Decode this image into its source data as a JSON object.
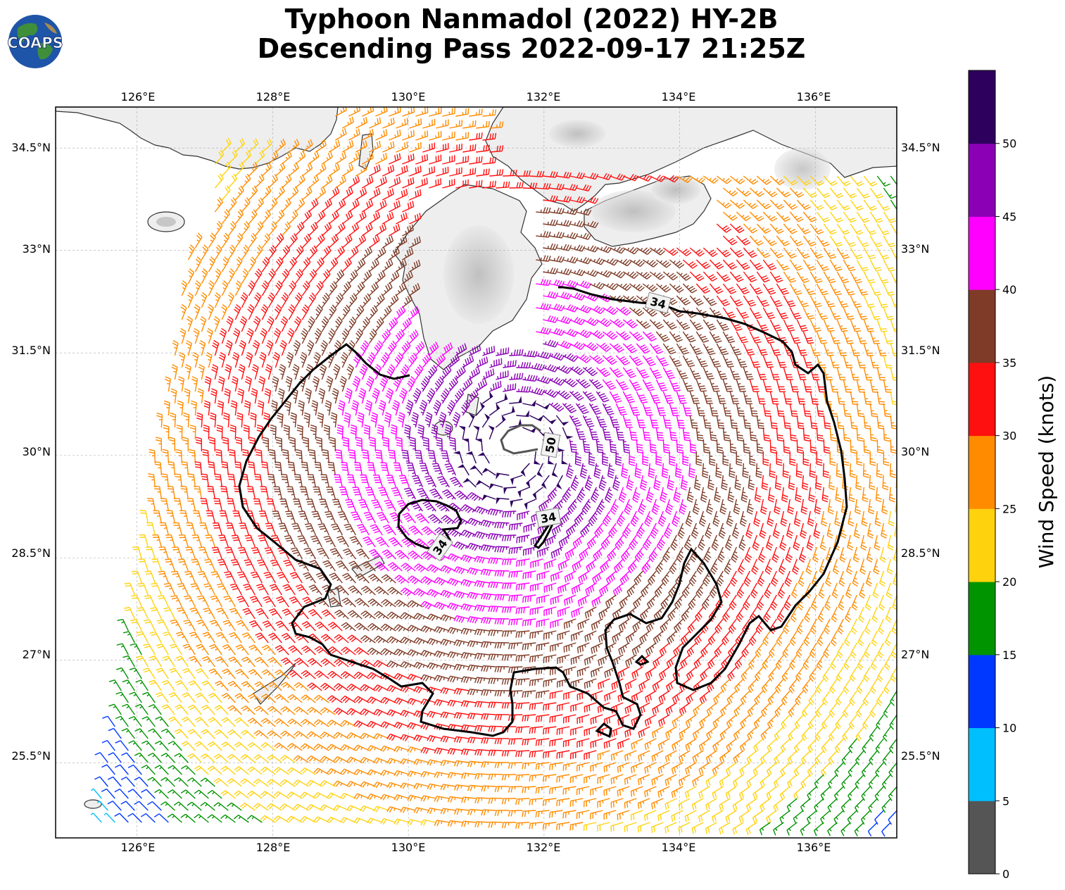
{
  "title_line1": "Typhoon Nanmadol (2022) HY-2B",
  "title_line2": "Descending Pass 2022-09-17 21:25Z",
  "logo_text": "COAPS",
  "lon_ticks": [
    "126°E",
    "128°E",
    "130°E",
    "132°E",
    "134°E",
    "136°E"
  ],
  "lat_ticks": [
    "34.5°N",
    "33°N",
    "31.5°N",
    "30°N",
    "28.5°N",
    "27°N",
    "25.5°N"
  ],
  "colorbar": {
    "label": "Wind Speed (knots)",
    "ticks": [
      "0",
      "5",
      "10",
      "15",
      "20",
      "25",
      "30",
      "35",
      "40",
      "45",
      "50"
    ],
    "colors": [
      "#555555",
      "#00bfff",
      "#0038ff",
      "#009400",
      "#ffd20e",
      "#ff8c00",
      "#ff1010",
      "#7f3b27",
      "#ff00ff",
      "#8b00b5",
      "#2d005e"
    ]
  },
  "contour_labels": [
    "34",
    "34",
    "34",
    "50"
  ],
  "chart_data": {
    "type": "wind_barb_map",
    "storm": "Typhoon Nanmadol (2022)",
    "instrument": "HY-2B",
    "pass": "Descending",
    "time": "2022-09-17 21:25Z",
    "units": "knots",
    "lon_range": [
      124.8,
      137.2
    ],
    "lat_range": [
      24.4,
      35.1
    ],
    "center": {
      "lon": 131.55,
      "lat": 30.1
    },
    "contours_kt": [
      34,
      50
    ]
  }
}
